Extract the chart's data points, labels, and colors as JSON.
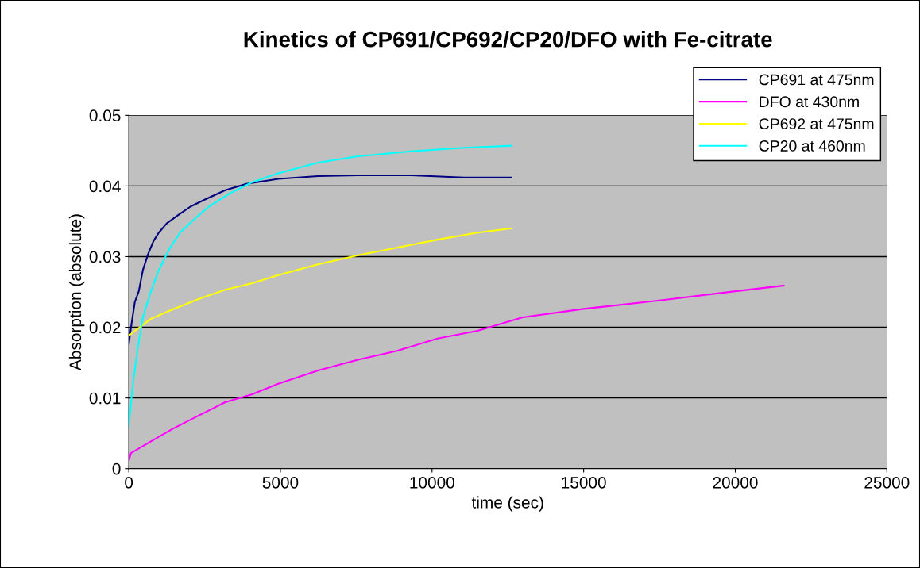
{
  "chart_data": {
    "type": "line",
    "title": "Kinetics of CP691/CP692/CP20/DFO with Fe-citrate",
    "xlabel": "time (sec)",
    "ylabel": "Absorption (absolute)",
    "xlim": [
      0,
      25000
    ],
    "xticks": [
      0,
      5000,
      10000,
      15000,
      20000,
      25000
    ],
    "ylim": [
      0,
      0.05
    ],
    "yticks": [
      0,
      0.01,
      0.02,
      0.03,
      0.04,
      0.05
    ],
    "grid": "y",
    "legend": "top right",
    "marker": "none",
    "line_style": "solid",
    "series": [
      {
        "name": "CP691 at 475nm",
        "color": "#000080",
        "x": [
          0,
          70,
          200,
          330,
          465,
          640,
          815,
          990,
          1250,
          1600,
          2040,
          2570,
          3180,
          3880,
          4930,
          6240,
          7560,
          9310,
          11060,
          12620
        ],
        "values": [
          0.0176,
          0.0199,
          0.0236,
          0.0251,
          0.0281,
          0.0304,
          0.0322,
          0.0334,
          0.0347,
          0.0358,
          0.0371,
          0.0382,
          0.0394,
          0.0403,
          0.041,
          0.0414,
          0.0415,
          0.0415,
          0.0412,
          0.0412
        ]
      },
      {
        "name": "DFO at 430nm",
        "color": "#ff00ff",
        "x": [
          0,
          70,
          550,
          1430,
          2300,
          3180,
          4050,
          4930,
          6240,
          7560,
          8870,
          10180,
          11500,
          12990,
          15000,
          17500,
          20000,
          21600
        ],
        "values": [
          0.0011,
          0.0022,
          0.0034,
          0.0056,
          0.0075,
          0.0094,
          0.0105,
          0.012,
          0.0139,
          0.0154,
          0.0167,
          0.0184,
          0.0195,
          0.0214,
          0.0226,
          0.0238,
          0.0251,
          0.0259
        ]
      },
      {
        "name": "CP692 at 475nm",
        "color": "#ffff00",
        "x": [
          0,
          200,
          730,
          1430,
          2300,
          3180,
          4050,
          4930,
          6240,
          7560,
          8870,
          10180,
          11500,
          12620
        ],
        "values": [
          0.0188,
          0.0195,
          0.0212,
          0.0225,
          0.024,
          0.0253,
          0.0262,
          0.0274,
          0.0289,
          0.0302,
          0.0313,
          0.0324,
          0.0334,
          0.034
        ]
      },
      {
        "name": "CP20 at 460nm",
        "color": "#00ffff",
        "x": [
          0,
          114,
          290,
          465,
          730,
          990,
          1340,
          1690,
          2130,
          2650,
          3350,
          4050,
          4930,
          6240,
          7560,
          9310,
          11060,
          12620
        ],
        "values": [
          0.0058,
          0.0112,
          0.0169,
          0.0214,
          0.0251,
          0.0281,
          0.0311,
          0.0334,
          0.0352,
          0.0371,
          0.039,
          0.0405,
          0.0418,
          0.0433,
          0.0442,
          0.0449,
          0.0454,
          0.0457
        ]
      }
    ]
  }
}
